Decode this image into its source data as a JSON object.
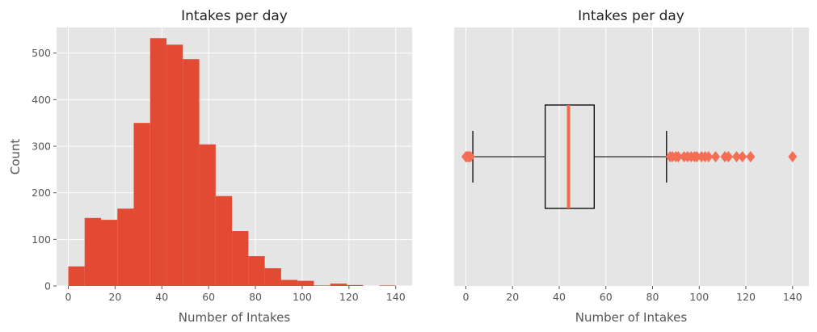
{
  "chart_data": [
    {
      "type": "bar",
      "subtype": "histogram",
      "title": "Intakes per day",
      "xlabel": "Number of Intakes",
      "ylabel": "Count",
      "xlim": [
        -5,
        147
      ],
      "ylim": [
        0,
        555
      ],
      "xticks": [
        0,
        20,
        40,
        60,
        80,
        100,
        120,
        140
      ],
      "yticks": [
        0,
        100,
        200,
        300,
        400,
        500
      ],
      "grid": true,
      "background": "#e5e5e5",
      "bar_color": "#e24a33",
      "bins": [
        {
          "start": 0,
          "end": 7,
          "count": 42
        },
        {
          "start": 7,
          "end": 14,
          "count": 146
        },
        {
          "start": 14,
          "end": 21,
          "count": 142
        },
        {
          "start": 21,
          "end": 28,
          "count": 166
        },
        {
          "start": 28,
          "end": 35,
          "count": 350
        },
        {
          "start": 35,
          "end": 42,
          "count": 532
        },
        {
          "start": 42,
          "end": 49,
          "count": 518
        },
        {
          "start": 49,
          "end": 56,
          "count": 487
        },
        {
          "start": 56,
          "end": 63,
          "count": 304
        },
        {
          "start": 63,
          "end": 70,
          "count": 193
        },
        {
          "start": 70,
          "end": 77,
          "count": 118
        },
        {
          "start": 77,
          "end": 84,
          "count": 64
        },
        {
          "start": 84,
          "end": 91,
          "count": 38
        },
        {
          "start": 91,
          "end": 98,
          "count": 13
        },
        {
          "start": 98,
          "end": 105,
          "count": 11
        },
        {
          "start": 105,
          "end": 112,
          "count": 1
        },
        {
          "start": 112,
          "end": 119,
          "count": 5
        },
        {
          "start": 119,
          "end": 126,
          "count": 2
        },
        {
          "start": 126,
          "end": 133,
          "count": 0
        },
        {
          "start": 133,
          "end": 140,
          "count": 1
        }
      ]
    },
    {
      "type": "box",
      "orientation": "horizontal",
      "title": "Intakes per day",
      "xlabel": "Number of Intakes",
      "xlim": [
        -5,
        147
      ],
      "xticks": [
        0,
        20,
        40,
        60,
        80,
        100,
        120,
        140
      ],
      "grid": true,
      "background": "#e5e5e5",
      "median_color": "#ee6a4a",
      "flier_color": "#f46e56",
      "whisker_low": 3,
      "q1": 34,
      "median": 44,
      "q3": 55,
      "whisker_high": 86,
      "fliers": [
        0,
        0.5,
        1,
        1.5,
        2,
        87.5,
        88.5,
        90,
        91,
        93.5,
        95,
        96.5,
        98,
        99,
        101,
        102.5,
        104,
        107,
        111,
        112.5,
        116,
        118.5,
        122,
        140
      ]
    }
  ]
}
